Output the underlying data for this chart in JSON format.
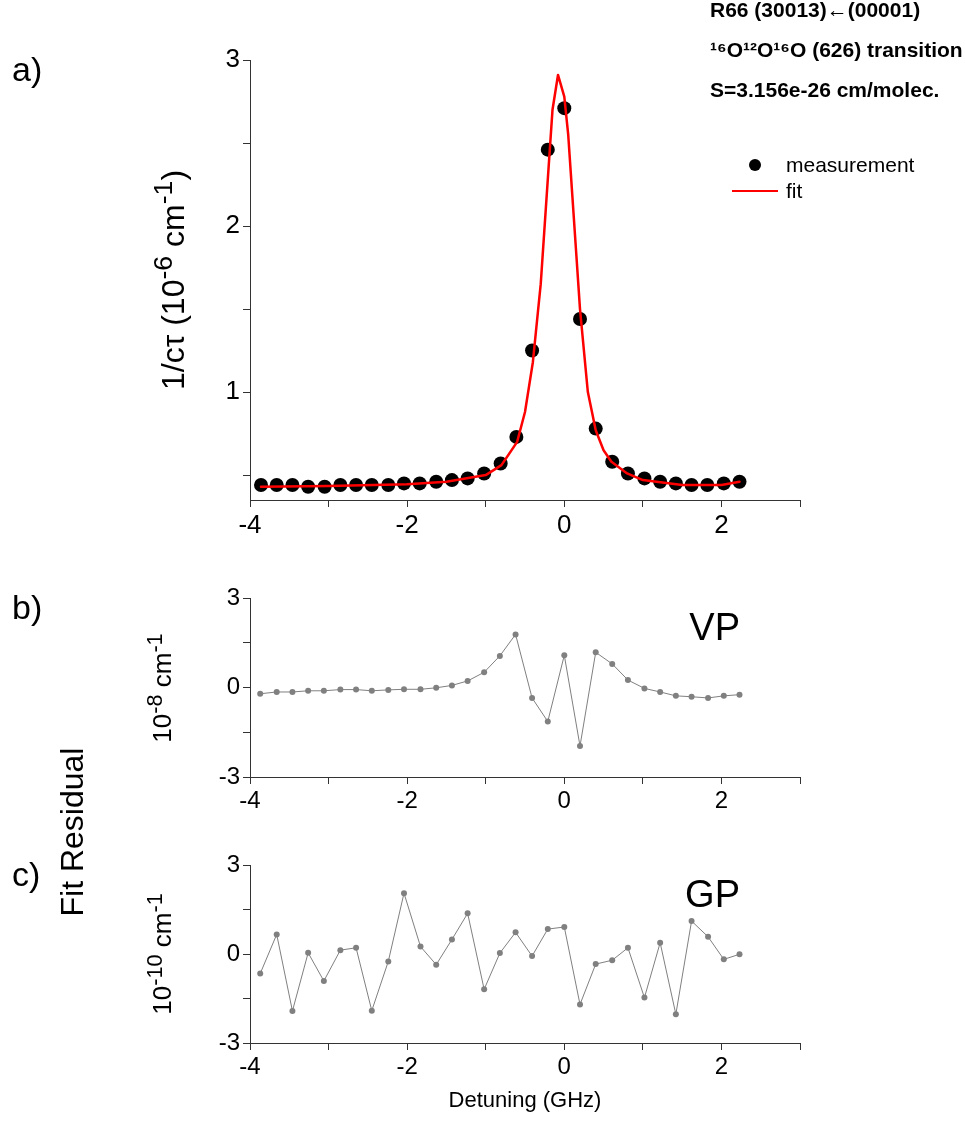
{
  "chart_data": [
    {
      "type": "scatter",
      "ylabel": "1/cτ (10$^{-6}$ cm$^{-1}$)",
      "annotations": [
        "a)",
        "R66 (30013)←(00001)",
        "¹⁶O¹²O¹⁶O (626) transition",
        "S=3.156e-26 cm/molec."
      ],
      "xlim": [
        -4,
        3
      ],
      "xticks": [
        -4,
        {
          "value": -3,
          "label": null
        },
        -2,
        {
          "value": -1,
          "label": null
        },
        0,
        {
          "value": 1,
          "label": null
        },
        2,
        {
          "value": 3,
          "label": null
        }
      ],
      "ylim": [
        0.35,
        3
      ],
      "yticks": [
        {
          "value": 0.5,
          "label": null
        },
        1,
        {
          "value": 1.5,
          "label": null
        },
        2,
        {
          "value": 2.5,
          "label": null
        },
        3
      ],
      "grid": false,
      "legend": "top right",
      "series": [
        {
          "name": "measurement",
          "type": "scatter",
          "marker": "circle",
          "color": "#000000",
          "x": [
            -3.86,
            -3.66,
            -3.46,
            -3.26,
            -3.05,
            -2.85,
            -2.65,
            -2.45,
            -2.24,
            -2.04,
            -1.84,
            -1.63,
            -1.43,
            -1.23,
            -1.02,
            -0.81,
            -0.61,
            -0.41,
            -0.21,
            0.0,
            0.2,
            0.4,
            0.61,
            0.81,
            1.02,
            1.22,
            1.42,
            1.62,
            1.82,
            2.03,
            2.23
          ],
          "values": [
            0.44,
            0.44,
            0.44,
            0.43,
            0.43,
            0.44,
            0.44,
            0.44,
            0.44,
            0.45,
            0.45,
            0.46,
            0.47,
            0.48,
            0.51,
            0.57,
            0.73,
            1.25,
            2.46,
            2.71,
            1.44,
            0.78,
            0.58,
            0.51,
            0.48,
            0.46,
            0.45,
            0.44,
            0.44,
            0.45,
            0.46
          ]
        },
        {
          "name": "fit",
          "type": "line",
          "marker": "none",
          "line_style": "solid",
          "color": "#ff0000",
          "x": [
            -3.86,
            -3,
            -2,
            -1.5,
            -1,
            -0.8,
            -0.6,
            -0.5,
            -0.4,
            -0.3,
            -0.2,
            -0.15,
            -0.08,
            0,
            0.05,
            0.1,
            0.2,
            0.3,
            0.4,
            0.5,
            0.6,
            0.8,
            1,
            1.5,
            2,
            2.23
          ],
          "values": [
            0.43,
            0.435,
            0.445,
            0.46,
            0.5,
            0.56,
            0.7,
            0.88,
            1.18,
            1.65,
            2.35,
            2.7,
            2.91,
            2.78,
            2.55,
            2.2,
            1.5,
            1.0,
            0.77,
            0.65,
            0.58,
            0.51,
            0.47,
            0.44,
            0.44,
            0.46
          ]
        }
      ]
    },
    {
      "type": "line",
      "ylabel": "10$^{-8}$ cm$^{-1}$",
      "annotations": [
        "b)",
        "VP",
        "Fit Residual"
      ],
      "xlim": [
        -4,
        3
      ],
      "xticks": [
        -4,
        {
          "value": -3,
          "label": null
        },
        -2,
        {
          "value": -1,
          "label": null
        },
        0,
        {
          "value": 1,
          "label": null
        },
        2,
        {
          "value": 3,
          "label": null
        }
      ],
      "ylim": [
        -3,
        3
      ],
      "yticks": [
        -3,
        {
          "value": -1.5,
          "label": null
        },
        0,
        {
          "value": 1.5,
          "label": null
        },
        3
      ],
      "grid": false,
      "marker": "circle",
      "line_style": "solid",
      "x": [
        -3.87,
        -3.66,
        -3.46,
        -3.26,
        -3.06,
        -2.85,
        -2.65,
        -2.45,
        -2.24,
        -2.04,
        -1.83,
        -1.63,
        -1.43,
        -1.23,
        -1.02,
        -0.82,
        -0.62,
        -0.41,
        -0.21,
        0.0,
        0.2,
        0.4,
        0.61,
        0.81,
        1.02,
        1.22,
        1.42,
        1.62,
        1.83,
        2.03,
        2.23
      ],
      "series": [
        {
          "color": "#808080",
          "values": [
            -0.21,
            -0.15,
            -0.15,
            -0.11,
            -0.11,
            -0.07,
            -0.07,
            -0.11,
            -0.08,
            -0.06,
            -0.06,
            -0.01,
            0.07,
            0.22,
            0.51,
            1.06,
            1.78,
            -0.35,
            -1.14,
            1.08,
            -1.96,
            1.18,
            0.79,
            0.25,
            -0.03,
            -0.15,
            -0.28,
            -0.31,
            -0.35,
            -0.28,
            -0.24
          ]
        }
      ]
    },
    {
      "type": "line",
      "ylabel": "10$^{-10}$ cm$^{-1}$",
      "xlabel": "Detuning (GHz)",
      "annotations": [
        "c)",
        "GP"
      ],
      "xlim": [
        -4,
        3
      ],
      "xticks": [
        -4,
        {
          "value": -3,
          "label": null
        },
        -2,
        {
          "value": -1,
          "label": null
        },
        0,
        {
          "value": 1,
          "label": null
        },
        2,
        {
          "value": 3,
          "label": null
        }
      ],
      "ylim": [
        -3,
        3
      ],
      "yticks": [
        -3,
        {
          "value": -1.5,
          "label": null
        },
        0,
        {
          "value": 1.5,
          "label": null
        },
        3
      ],
      "grid": false,
      "marker": "circle",
      "line_style": "solid",
      "x": [
        -3.87,
        -3.66,
        -3.46,
        -3.26,
        -3.06,
        -2.85,
        -2.65,
        -2.45,
        -2.24,
        -2.04,
        -1.83,
        -1.63,
        -1.43,
        -1.23,
        -1.02,
        -0.82,
        -0.62,
        -0.41,
        -0.21,
        0.0,
        0.2,
        0.4,
        0.61,
        0.81,
        1.02,
        1.22,
        1.42,
        1.62,
        1.83,
        2.03,
        2.23
      ],
      "series": [
        {
          "color": "#808080",
          "values": [
            -0.66,
            0.66,
            -1.92,
            0.04,
            -0.91,
            0.13,
            0.21,
            -1.91,
            -0.25,
            2.05,
            0.25,
            -0.36,
            0.49,
            1.37,
            -1.19,
            0.03,
            0.73,
            -0.07,
            0.84,
            0.91,
            -1.7,
            -0.34,
            -0.21,
            0.21,
            -1.47,
            0.38,
            -2.03,
            1.11,
            0.58,
            -0.18,
            -0.01
          ]
        }
      ]
    }
  ]
}
